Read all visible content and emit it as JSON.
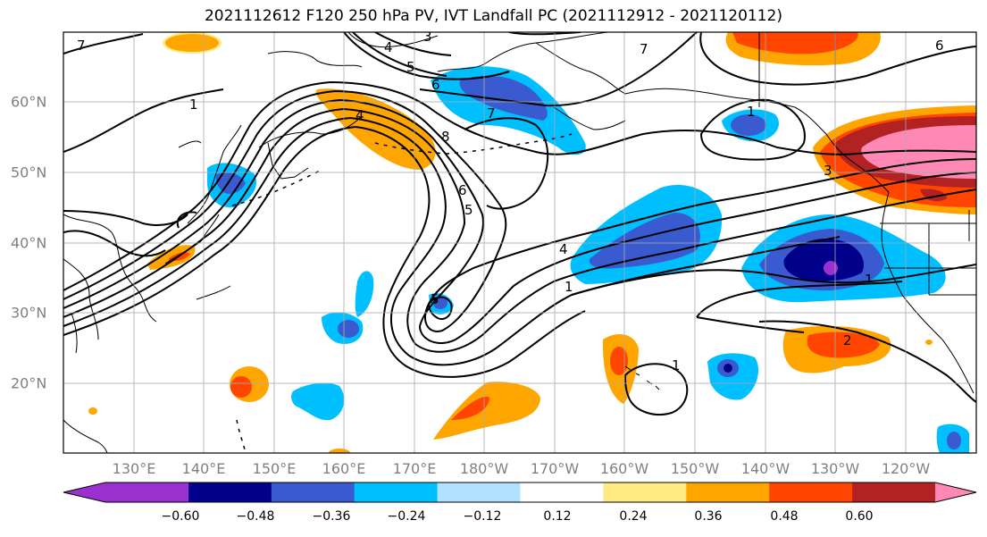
{
  "title": "2021112612 F120 250 hPa PV, IVT Landfall PC (2021112912 - 2021120112)",
  "lon_labels": [
    "130°E",
    "140°E",
    "150°E",
    "160°E",
    "170°E",
    "180°W",
    "170°W",
    "160°W",
    "150°W",
    "140°W",
    "130°W",
    "120°W"
  ],
  "lat_labels": [
    "60°N",
    "50°N",
    "40°N",
    "30°N",
    "20°N"
  ],
  "colorbar": {
    "tick_labels": [
      "−0.60",
      "−0.48",
      "−0.36",
      "−0.24",
      "−0.12",
      "0.12",
      "0.24",
      "0.36",
      "0.48",
      "0.60"
    ],
    "colors": [
      "#9b30d0",
      "#00008b",
      "#3a5bd0",
      "#00bfff",
      "#b0e2ff",
      "#ffffff",
      "#ffeb82",
      "#ffa500",
      "#ff4500",
      "#b22222",
      "#ff88b4"
    ]
  },
  "contour_labels": [
    "7",
    "4",
    "3",
    "5",
    "6",
    "7",
    "7",
    "6",
    "8",
    "6",
    "5",
    "4",
    "1",
    "1",
    "1",
    "3",
    "4",
    "2",
    "1",
    "1",
    "5"
  ]
}
